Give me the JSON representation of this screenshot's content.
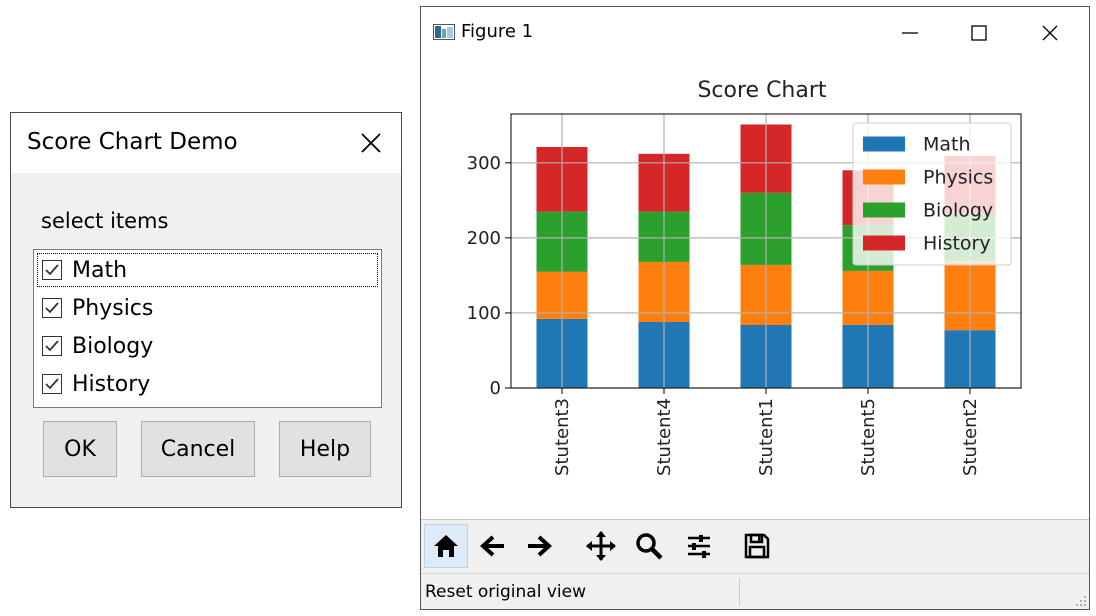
{
  "dialog": {
    "title": "Score Chart Demo",
    "section_label": "select items",
    "items": [
      {
        "label": "Math",
        "checked": true
      },
      {
        "label": "Physics",
        "checked": true
      },
      {
        "label": "Biology",
        "checked": true
      },
      {
        "label": "History",
        "checked": true
      }
    ],
    "buttons": {
      "ok": "OK",
      "cancel": "Cancel",
      "help": "Help"
    }
  },
  "figure": {
    "window_title": "Figure 1",
    "status_text": "Reset original view",
    "toolbar_icons": [
      "home-icon",
      "back-arrow-icon",
      "forward-arrow-icon",
      "pan-icon",
      "zoom-icon",
      "configure-subplots-icon",
      "save-icon"
    ]
  },
  "chart_data": {
    "type": "bar",
    "stacked": true,
    "title": "Score Chart",
    "xlabel": "",
    "ylabel": "",
    "categories": [
      "Stutent3",
      "Stutent4",
      "Stutent1",
      "Stutent5",
      "Stutent2"
    ],
    "series": [
      {
        "name": "Math",
        "color": "#1f77b4",
        "values": [
          92,
          88,
          84,
          84,
          77
        ]
      },
      {
        "name": "Physics",
        "color": "#ff7f0e",
        "values": [
          63,
          80,
          80,
          72,
          92
        ]
      },
      {
        "name": "Biology",
        "color": "#2ca02c",
        "values": [
          80,
          67,
          96,
          61,
          63
        ]
      },
      {
        "name": "History",
        "color": "#d62728",
        "values": [
          86,
          77,
          91,
          73,
          77
        ]
      }
    ],
    "ylim": [
      0,
      365
    ],
    "yticks": [
      0,
      100,
      200,
      300
    ],
    "grid": true,
    "legend": "upper right"
  }
}
